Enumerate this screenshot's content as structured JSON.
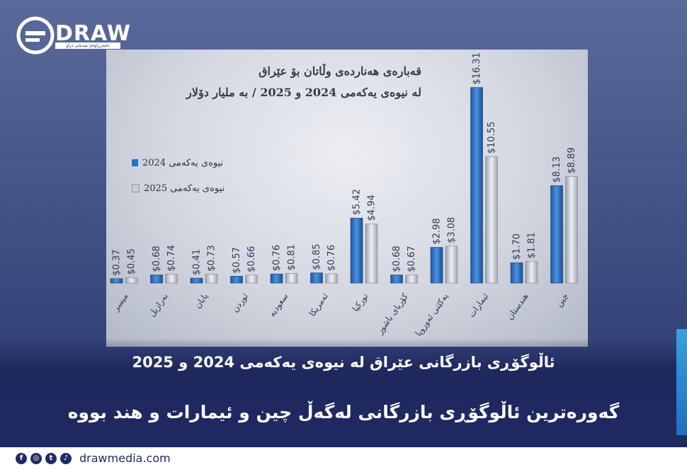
{
  "brand": {
    "name": "DRAW",
    "tagline": "دامەزراوەی میدیایی دراو"
  },
  "chart_data": {
    "type": "bar",
    "title": "قەبارەی هەناردەی وڵاتان بۆ عێراق",
    "subtitle": "لە نیوەی یەکەمی 2024 و 2025 / بە ملیار دۆلار",
    "categories": [
      "میسر",
      "بەرازیل",
      "یابان",
      "ئوردن",
      "سعودیە",
      "ئەمریکا",
      "تورکیا",
      "کۆریای باشور",
      "یەکێتی ئەوروپا",
      "ئیمارات",
      "هندستان",
      "چین"
    ],
    "series": [
      {
        "name": "نیوەی یەکەمی 2024",
        "values": [
          0.37,
          0.68,
          0.41,
          0.57,
          0.76,
          0.85,
          5.42,
          0.68,
          2.98,
          16.31,
          1.7,
          8.13
        ],
        "labels": [
          "$0.37",
          "$0.68",
          "$0.41",
          "$0.57",
          "$0.76",
          "$0.85",
          "$5.42",
          "$0.68",
          "$2.98",
          "$16.31",
          "$1.70",
          "$8.13"
        ]
      },
      {
        "name": "نیوەی یەکەمی 2025",
        "values": [
          0.45,
          0.74,
          0.73,
          0.66,
          0.81,
          0.76,
          4.94,
          0.67,
          3.08,
          10.55,
          1.81,
          8.89
        ],
        "labels": [
          "$0.45",
          "$0.74",
          "$0.73",
          "$0.66",
          "$0.81",
          "$0.76",
          "$4.94",
          "$0.67",
          "$3.08",
          "$10.55",
          "$1.81",
          "$8.89"
        ]
      }
    ],
    "ylim": [
      0,
      18
    ],
    "grid": false,
    "legend_position": "left",
    "colors": {
      "series_2024": "#2a6fc0",
      "series_2025": "#c8ccd6"
    }
  },
  "captions": {
    "subtitle": "ئاڵوگۆڕی بازرگانی عێراق لە نیوەی یەکەمی 2024 و 2025",
    "headline": "گەورەترین ئاڵوگۆڕی بازرگانی لەگەڵ چین و ئیمارات و هند بووە"
  },
  "footer": {
    "website": "drawmedia.com",
    "social_icons": [
      "facebook-icon",
      "instagram-icon",
      "twitter-icon",
      "tiktok-icon"
    ]
  }
}
